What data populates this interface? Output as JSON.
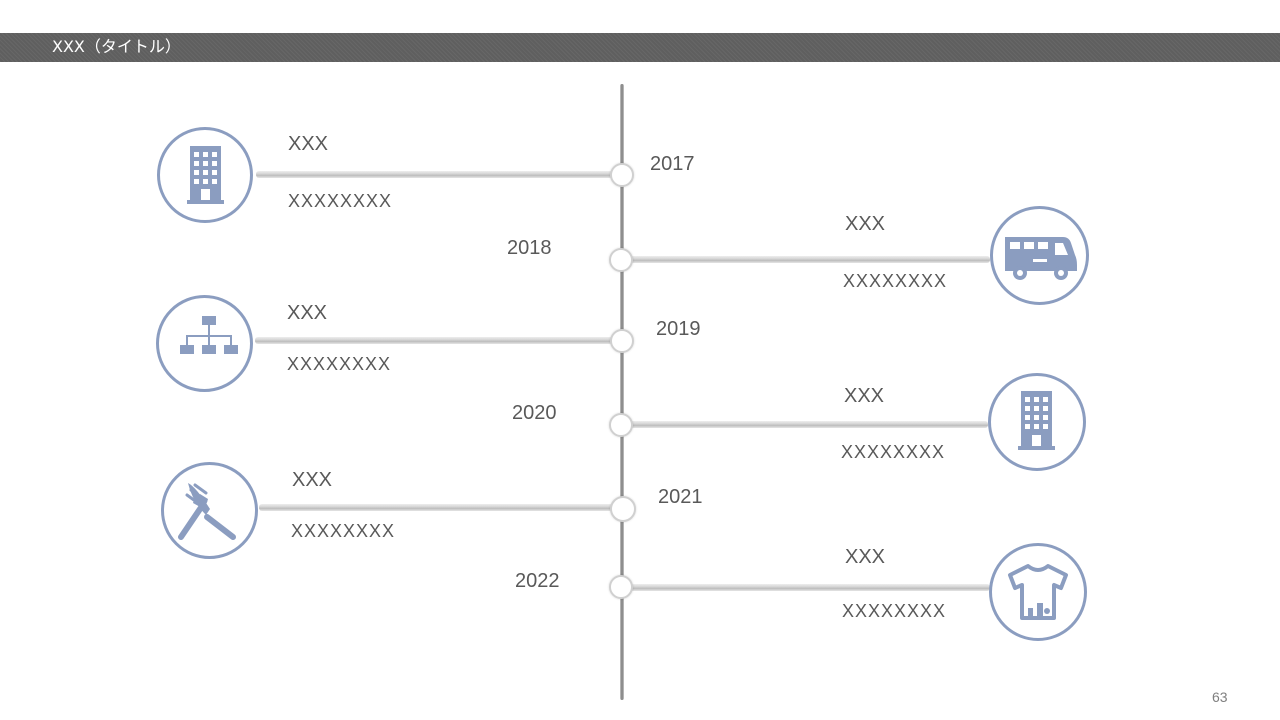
{
  "header": {
    "title": "XXX（タイトル）"
  },
  "timeline": [
    {
      "year": "2017",
      "label": "XXX",
      "description": "XXXXXXXX",
      "icon": "building-icon"
    },
    {
      "year": "2018",
      "label": "XXX",
      "description": "XXXXXXXX",
      "icon": "camper-van-icon"
    },
    {
      "year": "2019",
      "label": "XXX",
      "description": "XXXXXXXX",
      "icon": "org-chart-icon"
    },
    {
      "year": "2020",
      "label": "XXX",
      "description": "XXXXXXXX",
      "icon": "building-icon"
    },
    {
      "year": "2021",
      "label": "XXX",
      "description": "XXXXXXXX",
      "icon": "fork-knife-icon"
    },
    {
      "year": "2022",
      "label": "XXX",
      "description": "XXXXXXXX",
      "icon": "t-shirt-icon"
    }
  ],
  "colors": {
    "icon": "#8b9dc0",
    "title_bar": "#5f5f5f",
    "text": "#595959"
  },
  "footer": {
    "page_number": "63"
  }
}
